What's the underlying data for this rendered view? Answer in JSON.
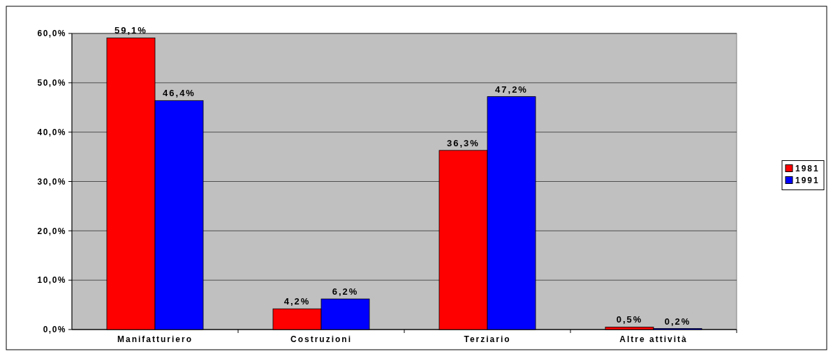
{
  "chart_data": {
    "type": "bar",
    "categories": [
      "Manifatturiero",
      "Costruzioni",
      "Terziario",
      "Altre attività"
    ],
    "series": [
      {
        "name": "1981",
        "color": "#ff0000",
        "values": [
          59.1,
          4.2,
          36.3,
          0.5
        ],
        "value_labels": [
          "59,1%",
          "4,2%",
          "36,3%",
          "0,5%"
        ]
      },
      {
        "name": "1991",
        "color": "#0000ff",
        "values": [
          46.4,
          6.2,
          47.2,
          0.2
        ],
        "value_labels": [
          "46,4%",
          "6,2%",
          "47,2%",
          "0,2%"
        ]
      }
    ],
    "ylim": [
      0,
      60
    ],
    "yticks": [
      {
        "value": 0,
        "label": "0,0%"
      },
      {
        "value": 10,
        "label": "10,0%"
      },
      {
        "value": 20,
        "label": "20,0%"
      },
      {
        "value": 30,
        "label": "30,0%"
      },
      {
        "value": 40,
        "label": "40,0%"
      },
      {
        "value": 50,
        "label": "50,0%"
      },
      {
        "value": 60,
        "label": "60,0%"
      }
    ],
    "grid": "y",
    "legend": "right"
  }
}
